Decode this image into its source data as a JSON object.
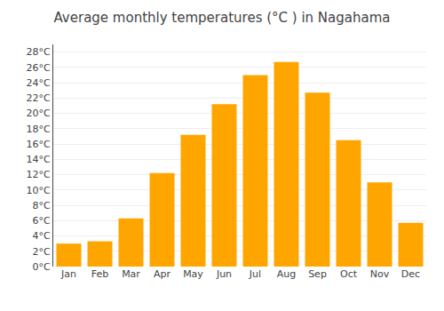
{
  "chart_data": {
    "type": "bar",
    "title": "Average monthly temperatures (°C ) in Nagahama",
    "categories": [
      "Jan",
      "Feb",
      "Mar",
      "Apr",
      "May",
      "Jun",
      "Jul",
      "Aug",
      "Sep",
      "Oct",
      "Nov",
      "Dec"
    ],
    "values": [
      3.0,
      3.3,
      6.3,
      12.2,
      17.2,
      21.2,
      25.0,
      26.7,
      22.7,
      16.5,
      11.0,
      5.7
    ],
    "color": "#FFA500",
    "ylim": [
      0,
      29
    ],
    "yticks": [
      {
        "value": 0,
        "label": "0°C"
      },
      {
        "value": 2,
        "label": "2°C"
      },
      {
        "value": 4,
        "label": "4°C"
      },
      {
        "value": 6,
        "label": "6°C"
      },
      {
        "value": 8,
        "label": "8°C"
      },
      {
        "value": 10,
        "label": "10°C"
      },
      {
        "value": 12,
        "label": "12°C"
      },
      {
        "value": 14,
        "label": "14°C"
      },
      {
        "value": 16,
        "label": "16°C"
      },
      {
        "value": 18,
        "label": "18°C"
      },
      {
        "value": 20,
        "label": "20°C"
      },
      {
        "value": 22,
        "label": "22°C"
      },
      {
        "value": 24,
        "label": "24°C"
      },
      {
        "value": 26,
        "label": "26°C"
      },
      {
        "value": 28,
        "label": "28°C"
      }
    ],
    "grid": true
  }
}
